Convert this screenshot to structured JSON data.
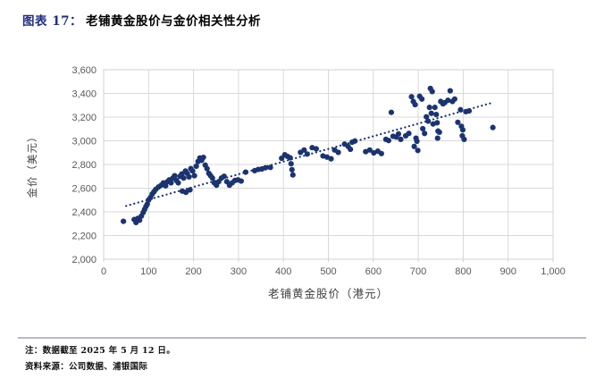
{
  "title": {
    "prefix": "图表 17：",
    "text": "老铺黄金股价与金价相关性分析"
  },
  "footer": {
    "note": "注：数据截至 2025 年 5 月 12 日。",
    "source": "资料来源：公司数据、浦银国际"
  },
  "colors": {
    "title_accent": "#232e7d",
    "point": "#1b3470",
    "trendline": "#1b3470",
    "grid": "#d9d9d9",
    "plot_border": "#d0d0d0",
    "axis_text": "#595959",
    "axis_title_text": "#404040",
    "separator": "#b9bac9"
  },
  "chart_data": {
    "type": "scatter",
    "title": "",
    "xlabel": "老铺黄金股价（港元）",
    "ylabel": "金价（美元）",
    "xlim": [
      0,
      1000
    ],
    "ylim": [
      2000,
      3600
    ],
    "x_tick_labels": [
      "0",
      "100",
      "200",
      "300",
      "400",
      "500",
      "600",
      "700",
      "800",
      "900",
      "1,000"
    ],
    "y_tick_labels": [
      "2,000",
      "2,200",
      "2,400",
      "2,600",
      "2,800",
      "3,000",
      "3,200",
      "3,400",
      "3,600"
    ],
    "grid": true,
    "legend": "none",
    "point_color": "#1b3470",
    "point_radius": 3.1,
    "trendline": {
      "style": "dotted",
      "x1": 50,
      "y1": 2450,
      "x2": 868,
      "y2": 3325
    },
    "points": [
      [
        44,
        2320
      ],
      [
        68,
        2335
      ],
      [
        72,
        2310
      ],
      [
        76,
        2345
      ],
      [
        80,
        2330
      ],
      [
        84,
        2365
      ],
      [
        88,
        2395
      ],
      [
        91,
        2420
      ],
      [
        94,
        2445
      ],
      [
        97,
        2465
      ],
      [
        100,
        2500
      ],
      [
        104,
        2520
      ],
      [
        108,
        2550
      ],
      [
        112,
        2570
      ],
      [
        116,
        2590
      ],
      [
        122,
        2610
      ],
      [
        128,
        2625
      ],
      [
        133,
        2645
      ],
      [
        138,
        2620
      ],
      [
        142,
        2655
      ],
      [
        146,
        2670
      ],
      [
        150,
        2645
      ],
      [
        154,
        2685
      ],
      [
        158,
        2705
      ],
      [
        162,
        2665
      ],
      [
        166,
        2645
      ],
      [
        170,
        2700
      ],
      [
        174,
        2720
      ],
      [
        178,
        2685
      ],
      [
        175,
        2575
      ],
      [
        183,
        2565
      ],
      [
        192,
        2585
      ],
      [
        182,
        2745
      ],
      [
        186,
        2725
      ],
      [
        190,
        2695
      ],
      [
        194,
        2765
      ],
      [
        198,
        2745
      ],
      [
        202,
        2705
      ],
      [
        206,
        2785
      ],
      [
        210,
        2825
      ],
      [
        214,
        2855
      ],
      [
        218,
        2835
      ],
      [
        222,
        2860
      ],
      [
        226,
        2795
      ],
      [
        230,
        2765
      ],
      [
        234,
        2725
      ],
      [
        238,
        2705
      ],
      [
        242,
        2685
      ],
      [
        246,
        2645
      ],
      [
        251,
        2625
      ],
      [
        256,
        2655
      ],
      [
        262,
        2685
      ],
      [
        268,
        2700
      ],
      [
        274,
        2655
      ],
      [
        280,
        2625
      ],
      [
        286,
        2645
      ],
      [
        292,
        2665
      ],
      [
        299,
        2670
      ],
      [
        306,
        2660
      ],
      [
        316,
        2735
      ],
      [
        336,
        2748
      ],
      [
        344,
        2758
      ],
      [
        352,
        2762
      ],
      [
        360,
        2772
      ],
      [
        371,
        2775
      ],
      [
        396,
        2852
      ],
      [
        403,
        2882
      ],
      [
        409,
        2868
      ],
      [
        415,
        2856
      ],
      [
        417,
        2806
      ],
      [
        419,
        2756
      ],
      [
        421,
        2712
      ],
      [
        438,
        2902
      ],
      [
        446,
        2922
      ],
      [
        453,
        2888
      ],
      [
        464,
        2942
      ],
      [
        473,
        2932
      ],
      [
        488,
        2872
      ],
      [
        497,
        2862
      ],
      [
        506,
        2848
      ],
      [
        514,
        2922
      ],
      [
        522,
        2902
      ],
      [
        536,
        2972
      ],
      [
        544,
        2952
      ],
      [
        549,
        2928
      ],
      [
        553,
        2988
      ],
      [
        559,
        2998
      ],
      [
        583,
        2908
      ],
      [
        592,
        2922
      ],
      [
        601,
        2898
      ],
      [
        610,
        2912
      ],
      [
        618,
        2892
      ],
      [
        628,
        3012
      ],
      [
        634,
        3002
      ],
      [
        640,
        3240
      ],
      [
        644,
        3038
      ],
      [
        651,
        3032
      ],
      [
        656,
        3058
      ],
      [
        661,
        3012
      ],
      [
        672,
        3042
      ],
      [
        679,
        3062
      ],
      [
        685,
        3372
      ],
      [
        689,
        3332
      ],
      [
        693,
        3305
      ],
      [
        695,
        3022
      ],
      [
        697,
        2996
      ],
      [
        691,
        2952
      ],
      [
        699,
        2918
      ],
      [
        703,
        3376
      ],
      [
        708,
        3352
      ],
      [
        710,
        3102
      ],
      [
        714,
        3062
      ],
      [
        718,
        3202
      ],
      [
        722,
        3166
      ],
      [
        727,
        3442
      ],
      [
        731,
        3416
      ],
      [
        725,
        3282
      ],
      [
        729,
        3232
      ],
      [
        733,
        3142
      ],
      [
        737,
        3282
      ],
      [
        740,
        3222
      ],
      [
        742,
        3152
      ],
      [
        744,
        3082
      ],
      [
        743,
        3022
      ],
      [
        747,
        3072
      ],
      [
        750,
        3332
      ],
      [
        755,
        3312
      ],
      [
        759,
        3322
      ],
      [
        766,
        3342
      ],
      [
        771,
        3422
      ],
      [
        776,
        3332
      ],
      [
        781,
        3352
      ],
      [
        788,
        3156
      ],
      [
        794,
        3262
      ],
      [
        796,
        3122
      ],
      [
        799,
        3092
      ],
      [
        798,
        3042
      ],
      [
        802,
        3012
      ],
      [
        806,
        3246
      ],
      [
        813,
        3252
      ],
      [
        866,
        3112
      ]
    ]
  }
}
